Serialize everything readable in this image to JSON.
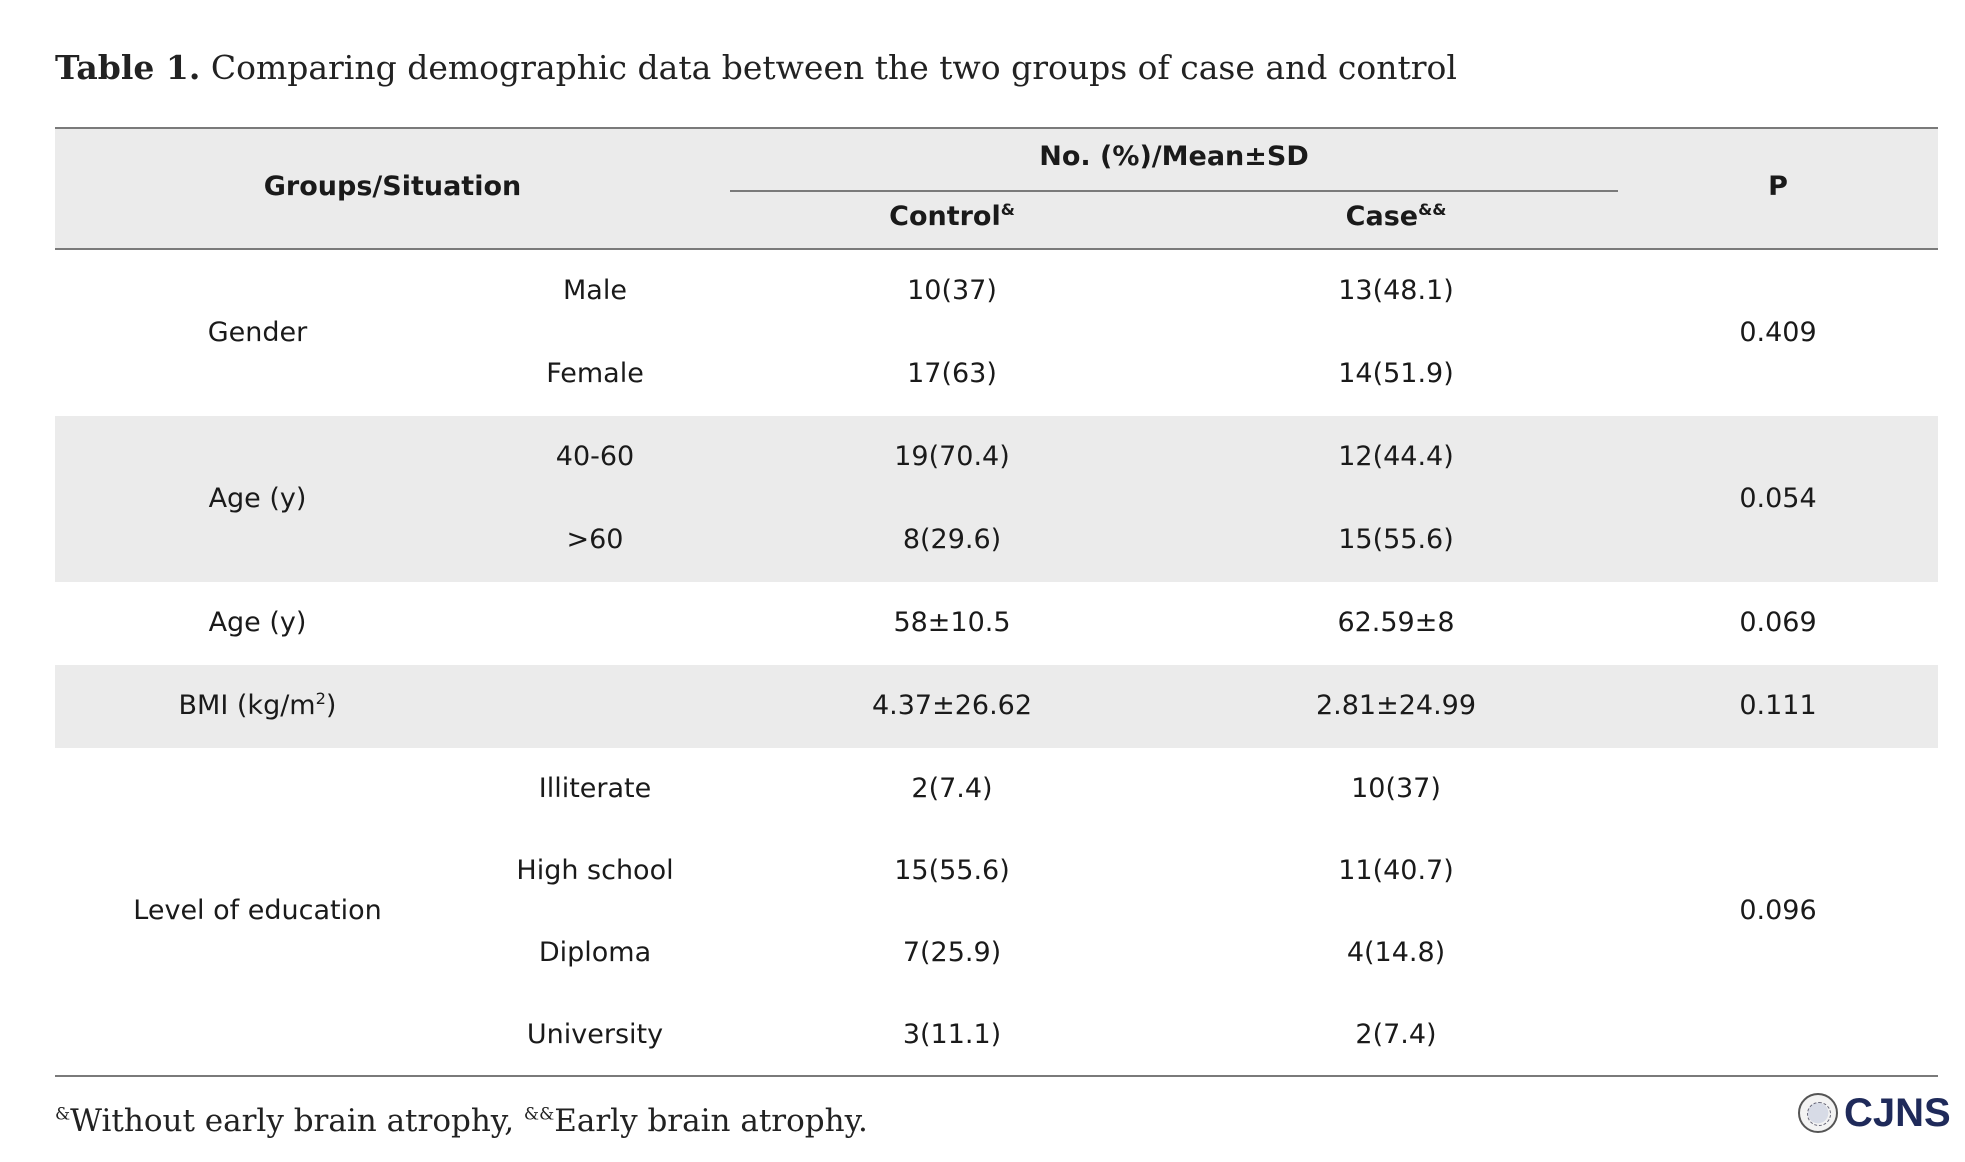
{
  "caption": {
    "label": "Table 1.",
    "text": "Comparing demographic data between the two groups of case and control"
  },
  "header": {
    "groups_situation": "Groups/Situation",
    "span_label": "No. (%)/Mean±SD",
    "control": "Control",
    "control_sup": "&",
    "case": "Case",
    "case_sup": "&&",
    "p": "P"
  },
  "rows": {
    "gender": {
      "group": "Gender",
      "p": "0.409",
      "male": {
        "sub": "Male",
        "control": "10(37)",
        "case": "13(48.1)"
      },
      "female": {
        "sub": "Female",
        "control": "17(63)",
        "case": "14(51.9)"
      }
    },
    "age_group": {
      "group": "Age (y)",
      "p": "0.054",
      "r1": {
        "sub": "40-60",
        "control": "19(70.4)",
        "case": "12(44.4)"
      },
      "r2": {
        "sub": ">60",
        "control": "8(29.6)",
        "case": "15(55.6)"
      }
    },
    "age_mean": {
      "group": "Age (y)",
      "control": "58±10.5",
      "case": "62.59±8",
      "p": "0.069"
    },
    "bmi": {
      "group": "BMI (kg/m",
      "group_sup": "2",
      "group_end": ")",
      "control": "4.37±26.62",
      "case": "2.81±24.99",
      "p": "0.111"
    },
    "education": {
      "group": "Level of education",
      "p": "0.096",
      "r1": {
        "sub": "Illiterate",
        "control": "2(7.4)",
        "case": "10(37)"
      },
      "r2": {
        "sub": "High school",
        "control": "15(55.6)",
        "case": "11(40.7)"
      },
      "r3": {
        "sub": "Diploma",
        "control": "7(25.9)",
        "case": "4(14.8)"
      },
      "r4": {
        "sub": "University",
        "control": "3(11.1)",
        "case": "2(7.4)"
      }
    }
  },
  "footnote": {
    "sup1": "&",
    "text1": "Without early brain atrophy, ",
    "sup2": "&&",
    "text2": "Early brain atrophy."
  },
  "logo": {
    "text": "CJNS"
  }
}
